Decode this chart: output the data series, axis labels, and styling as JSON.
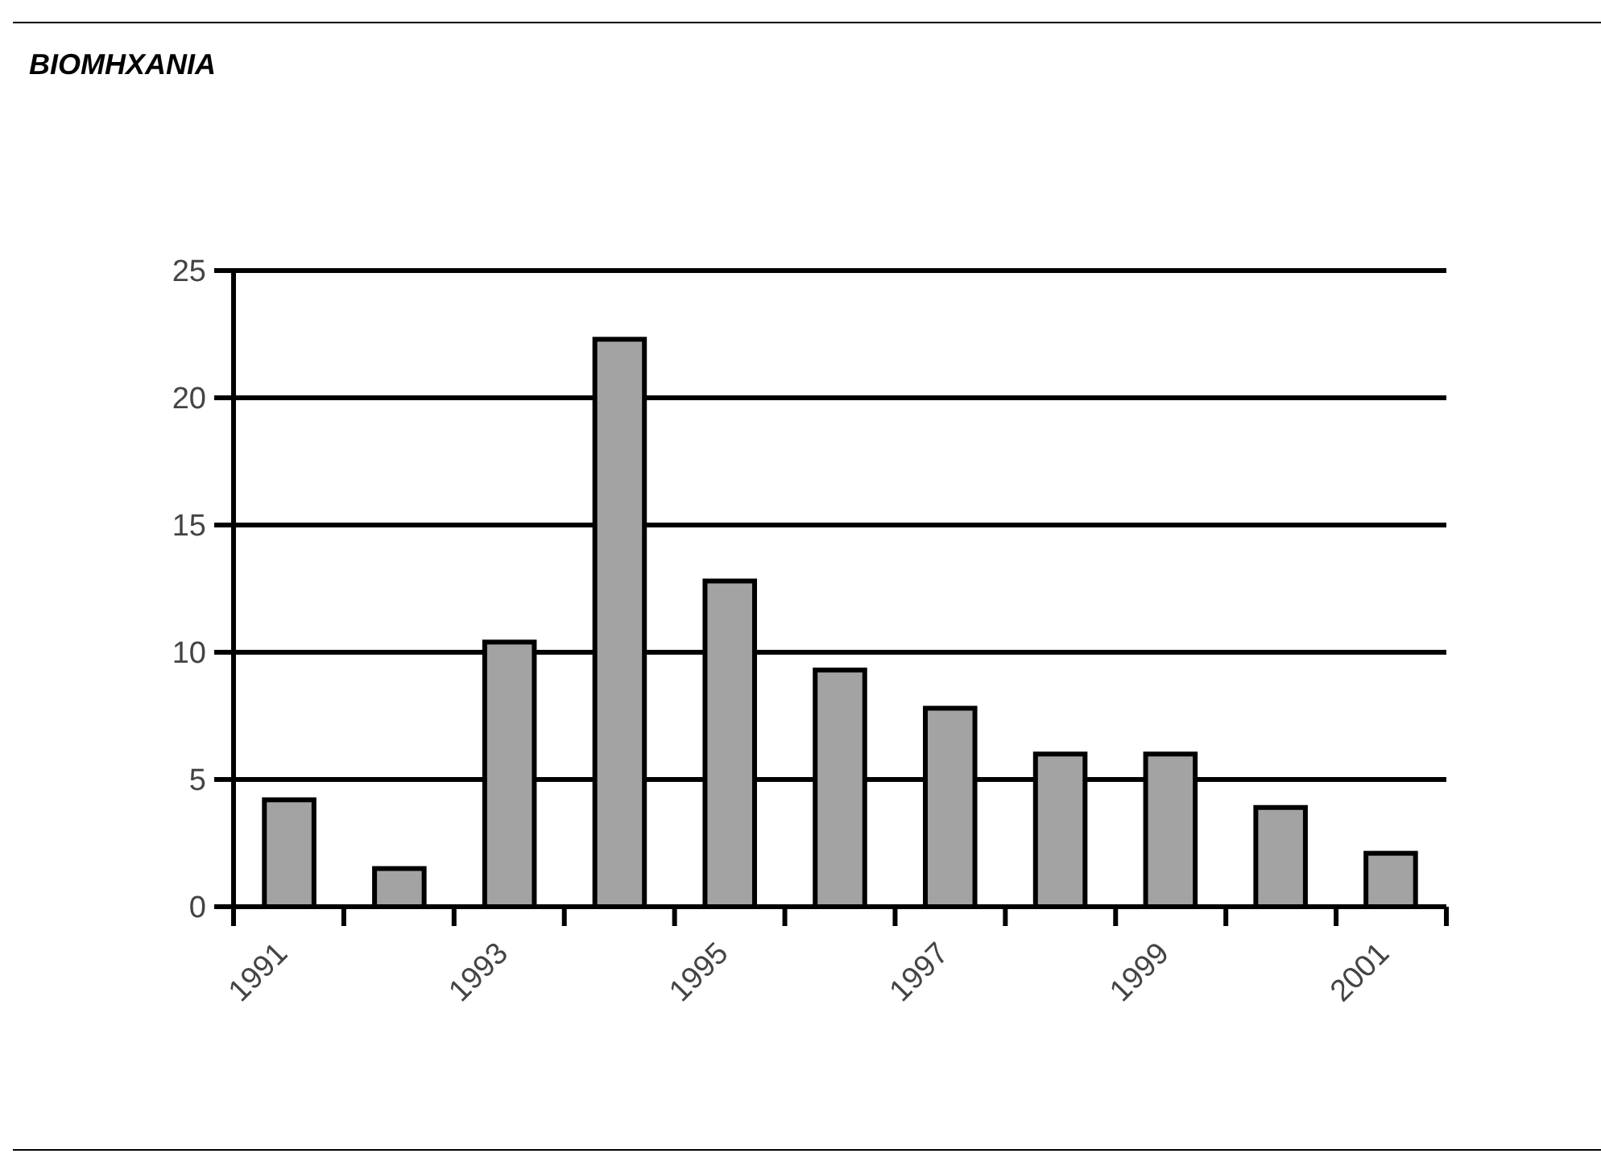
{
  "chart_data": {
    "type": "bar",
    "title": "ΒΙΟΜΗΧΑΝΙΑ",
    "categories": [
      "1991",
      null,
      "1993",
      null,
      "1995",
      null,
      "1997",
      null,
      "1999",
      null,
      "2001"
    ],
    "values": [
      4.2,
      1.5,
      10.4,
      22.3,
      12.8,
      9.3,
      7.8,
      6.0,
      6.0,
      3.9,
      2.1
    ],
    "color": "#a3a3a3",
    "ylim": [
      0,
      25
    ],
    "yticks": [
      0,
      5,
      10,
      15,
      20,
      25
    ],
    "grid": "y"
  }
}
